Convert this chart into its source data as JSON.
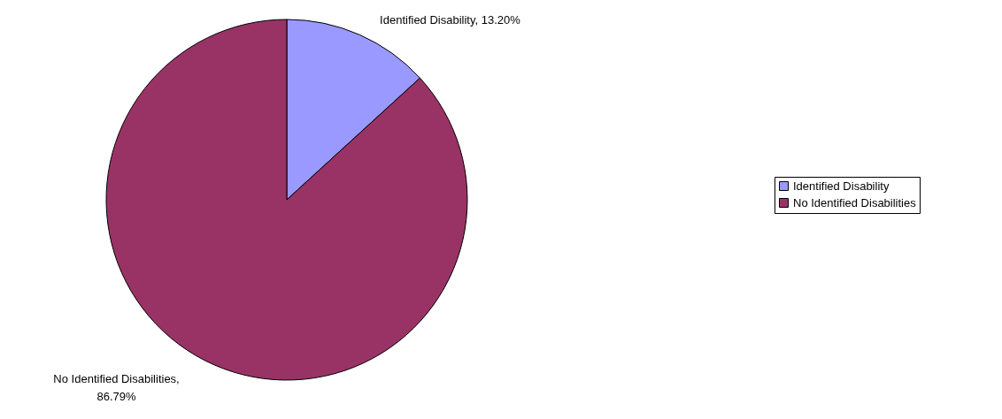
{
  "chart_data": {
    "type": "pie",
    "categories": [
      "Identified Disability",
      "No Identified Disabilities"
    ],
    "values": [
      13.2,
      86.79
    ],
    "colors": [
      "#9999ff",
      "#993366"
    ],
    "value_labels": [
      "Identified Disability, 13.20%",
      "No Identified Disabilities, 86.79%"
    ],
    "legend": "right"
  }
}
